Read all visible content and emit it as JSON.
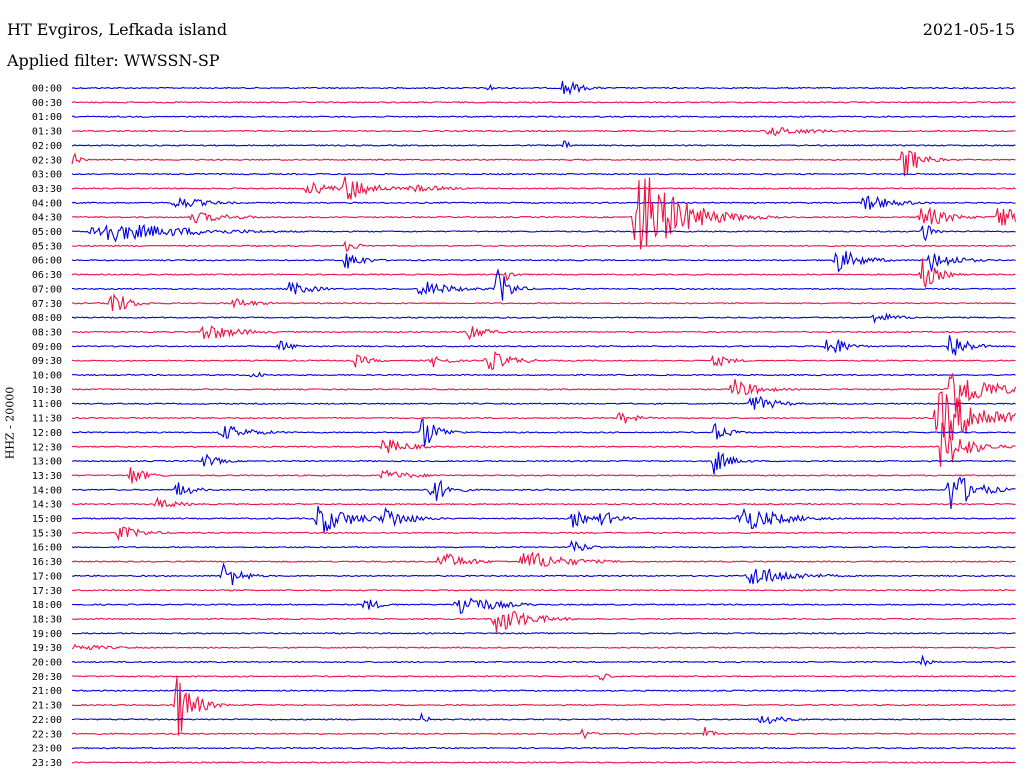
{
  "header": {
    "station": "HT Evgiros, Lefkada island",
    "date": "2021-05-15",
    "filter_label": "Applied filter: WWSSN-SP"
  },
  "chart_data": {
    "type": "line",
    "title": "HT Evgiros, Lefkada island",
    "subtitle": "Applied filter: WWSSN-SP",
    "date": "2021-05-15",
    "ylabel": "HHZ - 20000",
    "colors": [
      "#0000dd",
      "#ee1144"
    ],
    "rows": [
      "00:00",
      "00:30",
      "01:00",
      "01:30",
      "02:00",
      "02:30",
      "03:00",
      "03:30",
      "04:00",
      "04:30",
      "05:00",
      "05:30",
      "06:00",
      "06:30",
      "07:00",
      "07:30",
      "08:00",
      "08:30",
      "09:00",
      "09:30",
      "10:00",
      "10:30",
      "11:00",
      "11:30",
      "12:00",
      "12:30",
      "13:00",
      "13:30",
      "14:00",
      "14:30",
      "15:00",
      "15:30",
      "16:00",
      "16:30",
      "17:00",
      "17:30",
      "18:00",
      "18:30",
      "19:00",
      "19:30",
      "20:00",
      "20:30",
      "21:00",
      "21:30",
      "22:00",
      "22:30",
      "23:00",
      "23:30"
    ],
    "events": [
      {
        "row": 0,
        "t": 0.44,
        "amp": 6,
        "dur": 0.008
      },
      {
        "row": 0,
        "t": 0.52,
        "amp": 11,
        "dur": 0.02
      },
      {
        "row": 3,
        "t": 0.74,
        "amp": 5,
        "dur": 0.06
      },
      {
        "row": 4,
        "t": 0.52,
        "amp": 6,
        "dur": 0.01
      },
      {
        "row": 5,
        "t": 0.0,
        "amp": 10,
        "dur": 0.01
      },
      {
        "row": 5,
        "t": 0.88,
        "amp": 22,
        "dur": 0.02
      },
      {
        "row": 7,
        "t": 0.25,
        "amp": 8,
        "dur": 0.03
      },
      {
        "row": 7,
        "t": 0.29,
        "amp": 16,
        "dur": 0.03
      },
      {
        "row": 7,
        "t": 0.36,
        "amp": 4,
        "dur": 0.05
      },
      {
        "row": 8,
        "t": 0.11,
        "amp": 7,
        "dur": 0.04
      },
      {
        "row": 8,
        "t": 0.84,
        "amp": 9,
        "dur": 0.04
      },
      {
        "row": 9,
        "t": 0.6,
        "amp": 55,
        "dur": 0.05
      },
      {
        "row": 9,
        "t": 0.13,
        "amp": 6,
        "dur": 0.05
      },
      {
        "row": 9,
        "t": 0.9,
        "amp": 14,
        "dur": 0.03
      },
      {
        "row": 9,
        "t": 0.98,
        "amp": 18,
        "dur": 0.02
      },
      {
        "row": 10,
        "t": 0.03,
        "amp": 12,
        "dur": 0.1
      },
      {
        "row": 10,
        "t": 0.9,
        "amp": 20,
        "dur": 0.01
      },
      {
        "row": 11,
        "t": 0.29,
        "amp": 6,
        "dur": 0.02
      },
      {
        "row": 12,
        "t": 0.29,
        "amp": 12,
        "dur": 0.02
      },
      {
        "row": 12,
        "t": 0.81,
        "amp": 14,
        "dur": 0.03
      },
      {
        "row": 12,
        "t": 0.91,
        "amp": 12,
        "dur": 0.03
      },
      {
        "row": 13,
        "t": 0.9,
        "amp": 18,
        "dur": 0.02
      },
      {
        "row": 13,
        "t": 0.46,
        "amp": 8,
        "dur": 0.01
      },
      {
        "row": 14,
        "t": 0.23,
        "amp": 8,
        "dur": 0.03
      },
      {
        "row": 14,
        "t": 0.37,
        "amp": 9,
        "dur": 0.04
      },
      {
        "row": 14,
        "t": 0.45,
        "amp": 26,
        "dur": 0.015
      },
      {
        "row": 15,
        "t": 0.04,
        "amp": 18,
        "dur": 0.02
      },
      {
        "row": 15,
        "t": 0.17,
        "amp": 6,
        "dur": 0.03
      },
      {
        "row": 16,
        "t": 0.85,
        "amp": 6,
        "dur": 0.03
      },
      {
        "row": 17,
        "t": 0.14,
        "amp": 10,
        "dur": 0.04
      },
      {
        "row": 17,
        "t": 0.42,
        "amp": 12,
        "dur": 0.02
      },
      {
        "row": 18,
        "t": 0.22,
        "amp": 6,
        "dur": 0.02
      },
      {
        "row": 18,
        "t": 0.8,
        "amp": 16,
        "dur": 0.02
      },
      {
        "row": 18,
        "t": 0.93,
        "amp": 18,
        "dur": 0.02
      },
      {
        "row": 19,
        "t": 0.3,
        "amp": 7,
        "dur": 0.02
      },
      {
        "row": 19,
        "t": 0.38,
        "amp": 8,
        "dur": 0.02
      },
      {
        "row": 19,
        "t": 0.44,
        "amp": 12,
        "dur": 0.03
      },
      {
        "row": 19,
        "t": 0.68,
        "amp": 8,
        "dur": 0.02
      },
      {
        "row": 20,
        "t": 0.19,
        "amp": 8,
        "dur": 0.01
      },
      {
        "row": 21,
        "t": 0.7,
        "amp": 12,
        "dur": 0.03
      },
      {
        "row": 21,
        "t": 0.93,
        "amp": 30,
        "dur": 0.04
      },
      {
        "row": 22,
        "t": 0.72,
        "amp": 10,
        "dur": 0.03
      },
      {
        "row": 23,
        "t": 0.58,
        "amp": 8,
        "dur": 0.02
      },
      {
        "row": 23,
        "t": 0.92,
        "amp": 30,
        "dur": 0.06
      },
      {
        "row": 24,
        "t": 0.16,
        "amp": 8,
        "dur": 0.04
      },
      {
        "row": 24,
        "t": 0.37,
        "amp": 20,
        "dur": 0.02
      },
      {
        "row": 24,
        "t": 0.68,
        "amp": 10,
        "dur": 0.02
      },
      {
        "row": 25,
        "t": 0.33,
        "amp": 10,
        "dur": 0.03
      },
      {
        "row": 25,
        "t": 0.92,
        "amp": 28,
        "dur": 0.03
      },
      {
        "row": 26,
        "t": 0.14,
        "amp": 8,
        "dur": 0.02
      },
      {
        "row": 26,
        "t": 0.68,
        "amp": 14,
        "dur": 0.02
      },
      {
        "row": 27,
        "t": 0.06,
        "amp": 12,
        "dur": 0.02
      },
      {
        "row": 27,
        "t": 0.33,
        "amp": 6,
        "dur": 0.04
      },
      {
        "row": 28,
        "t": 0.11,
        "amp": 10,
        "dur": 0.02
      },
      {
        "row": 28,
        "t": 0.38,
        "amp": 18,
        "dur": 0.02
      },
      {
        "row": 28,
        "t": 0.93,
        "amp": 24,
        "dur": 0.03
      },
      {
        "row": 29,
        "t": 0.09,
        "amp": 6,
        "dur": 0.03
      },
      {
        "row": 30,
        "t": 0.26,
        "amp": 18,
        "dur": 0.04
      },
      {
        "row": 30,
        "t": 0.33,
        "amp": 14,
        "dur": 0.03
      },
      {
        "row": 30,
        "t": 0.53,
        "amp": 10,
        "dur": 0.02
      },
      {
        "row": 30,
        "t": 0.56,
        "amp": 10,
        "dur": 0.02
      },
      {
        "row": 30,
        "t": 0.71,
        "amp": 14,
        "dur": 0.05
      },
      {
        "row": 31,
        "t": 0.05,
        "amp": 8,
        "dur": 0.03
      },
      {
        "row": 32,
        "t": 0.53,
        "amp": 8,
        "dur": 0.02
      },
      {
        "row": 33,
        "t": 0.39,
        "amp": 12,
        "dur": 0.03
      },
      {
        "row": 33,
        "t": 0.48,
        "amp": 12,
        "dur": 0.05
      },
      {
        "row": 34,
        "t": 0.16,
        "amp": 18,
        "dur": 0.02
      },
      {
        "row": 34,
        "t": 0.72,
        "amp": 12,
        "dur": 0.05
      },
      {
        "row": 36,
        "t": 0.31,
        "amp": 8,
        "dur": 0.02
      },
      {
        "row": 36,
        "t": 0.41,
        "amp": 14,
        "dur": 0.04
      },
      {
        "row": 37,
        "t": 0.45,
        "amp": 16,
        "dur": 0.04
      },
      {
        "row": 39,
        "t": 0.0,
        "amp": 4,
        "dur": 0.05
      },
      {
        "row": 40,
        "t": 0.9,
        "amp": 10,
        "dur": 0.01
      },
      {
        "row": 41,
        "t": 0.56,
        "amp": 6,
        "dur": 0.01
      },
      {
        "row": 43,
        "t": 0.11,
        "amp": 40,
        "dur": 0.02
      },
      {
        "row": 44,
        "t": 0.37,
        "amp": 6,
        "dur": 0.01
      },
      {
        "row": 44,
        "t": 0.73,
        "amp": 6,
        "dur": 0.03
      },
      {
        "row": 45,
        "t": 0.54,
        "amp": 8,
        "dur": 0.01
      },
      {
        "row": 45,
        "t": 0.67,
        "amp": 8,
        "dur": 0.01
      }
    ]
  }
}
